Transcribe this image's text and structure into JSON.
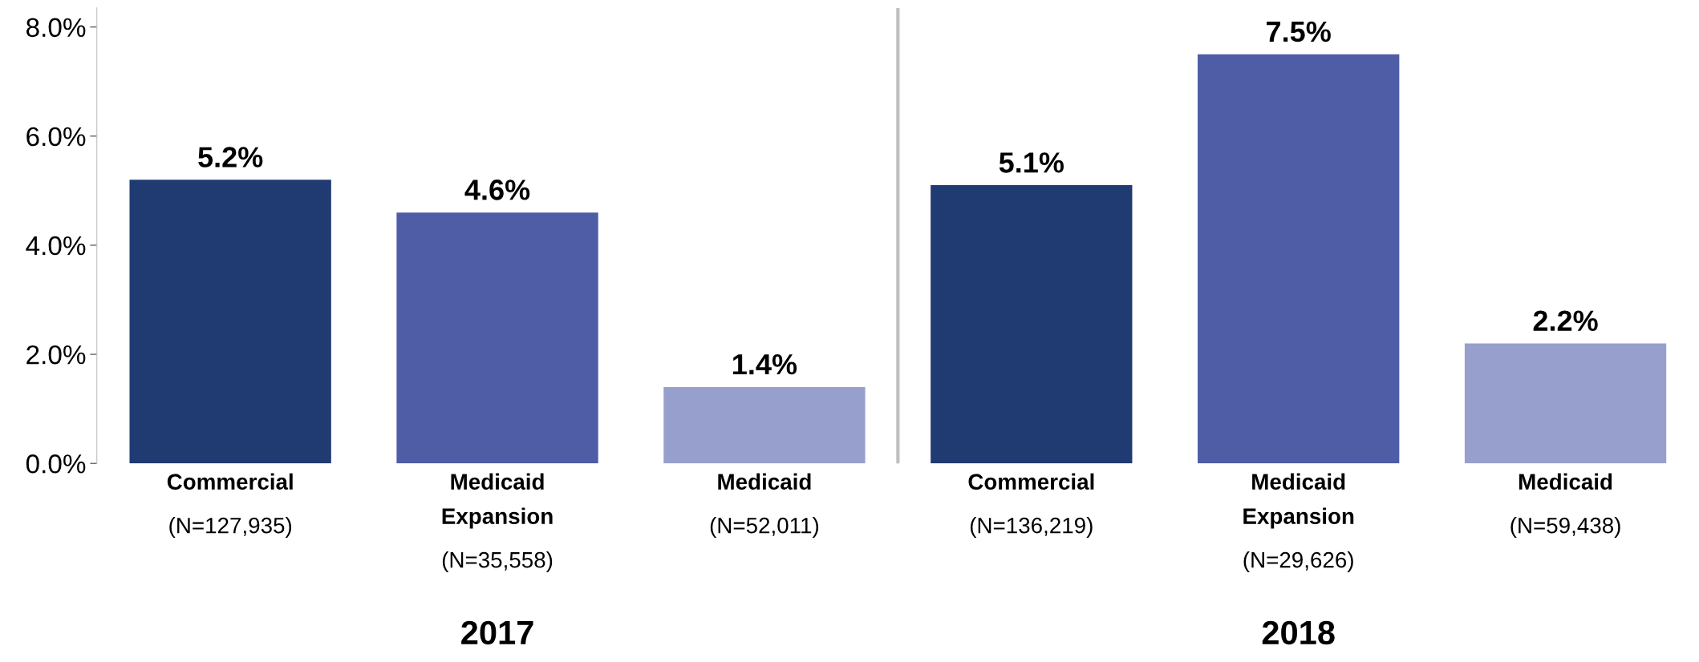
{
  "chart_data": {
    "type": "bar",
    "categories": [
      "Commercial\n(N=127,935)",
      "Medicaid\nExpansion\n(N=35,558)",
      "Medicaid\n(N=52,011)",
      "Commercial\n(N=136,219)",
      "Medicaid\nExpansion\n(N=29,626)",
      "Medicaid\n(N=59,438)"
    ],
    "values": [
      5.2,
      4.6,
      1.4,
      5.1,
      7.5,
      2.2
    ],
    "colors": [
      "#203a72",
      "#4f5ca6",
      "#97a0cc",
      "#203a72",
      "#4f5ca6",
      "#97a0cc"
    ],
    "value_labels": [
      "5.2%",
      "4.6%",
      "1.4%",
      "5.1%",
      "7.5%",
      "2.2%"
    ],
    "ylim": [
      0,
      8.35
    ],
    "yticks": [
      {
        "value": 0,
        "label": "0.0%"
      },
      {
        "value": 2,
        "label": "2.0%"
      },
      {
        "value": 4,
        "label": "4.0%"
      },
      {
        "value": 6,
        "label": "6.0%"
      },
      {
        "value": 8,
        "label": "8.0%"
      }
    ],
    "annotations": [
      "2017",
      "2018"
    ],
    "grid": false,
    "legend": false
  }
}
